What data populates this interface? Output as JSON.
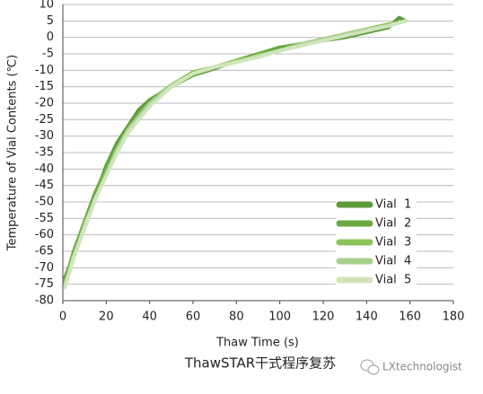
{
  "chart_data": {
    "type": "line",
    "title": "ThawSTAR干式程序复苏",
    "x_label": "Thaw Time (s)",
    "y_label": "Temperature of Vial Contents (℃)",
    "watermark": "LXtechnologist",
    "x": [
      1,
      5,
      10,
      15,
      20,
      25,
      30,
      35,
      40,
      45,
      50,
      60,
      70,
      80,
      90,
      100,
      110,
      120,
      130,
      140,
      150,
      155,
      158
    ],
    "series": [
      {
        "name": "Vial  1",
        "color": "#5e9a3c",
        "values": [
          -73,
          -66,
          -57,
          -48,
          -39,
          -32,
          -27,
          -22,
          -19,
          -17,
          -14.5,
          -11,
          -9,
          -7.5,
          -5.5,
          -3.5,
          -2,
          -1,
          0,
          1.5,
          3,
          6,
          5
        ]
      },
      {
        "name": "Vial  2",
        "color": "#6aa842",
        "values": [
          -74,
          -65,
          -56,
          -47,
          -40,
          -33,
          -28,
          -23,
          -20,
          -17.5,
          -15,
          -11.5,
          -9.5,
          -7,
          -5,
          -3,
          -2,
          -0.5,
          1,
          2,
          3.5,
          4.5,
          5
        ]
      },
      {
        "name": "Vial  3",
        "color": "#8dc35a",
        "values": [
          -75,
          -66,
          -58,
          -49,
          -41,
          -34,
          -29,
          -24,
          -20,
          -17,
          -14.5,
          -10.5,
          -9,
          -7,
          -6,
          -4,
          -2.5,
          -0.5,
          1,
          2.5,
          4,
          4.5,
          5
        ]
      },
      {
        "name": "Vial  4",
        "color": "#a9cf8c",
        "values": [
          -75,
          -67,
          -57,
          -49,
          -42,
          -34,
          -28,
          -24,
          -20,
          -17.5,
          -14.5,
          -11,
          -9,
          -7.5,
          -5.5,
          -4,
          -2,
          -0.5,
          1,
          2.5,
          3.5,
          4.5,
          5
        ]
      },
      {
        "name": "Vial  5",
        "color": "#cfe5bd",
        "values": [
          -76,
          -67,
          -58,
          -49,
          -42,
          -35,
          -29,
          -25,
          -21,
          -18,
          -15,
          -11,
          -9,
          -7.5,
          -6,
          -4,
          -2.5,
          -1,
          0.5,
          2,
          3.5,
          4.5,
          5
        ]
      }
    ],
    "xlim": [
      0,
      180
    ],
    "xticks": [
      0,
      20,
      40,
      60,
      80,
      100,
      120,
      140,
      160,
      180
    ],
    "ylim": [
      -80,
      10
    ],
    "yticks": [
      10,
      5,
      0,
      -5,
      -10,
      -15,
      -20,
      -25,
      -30,
      -35,
      -40,
      -45,
      -50,
      -55,
      -60,
      -65,
      -70,
      -75,
      -80
    ],
    "grid": true,
    "legend": "lower right"
  }
}
